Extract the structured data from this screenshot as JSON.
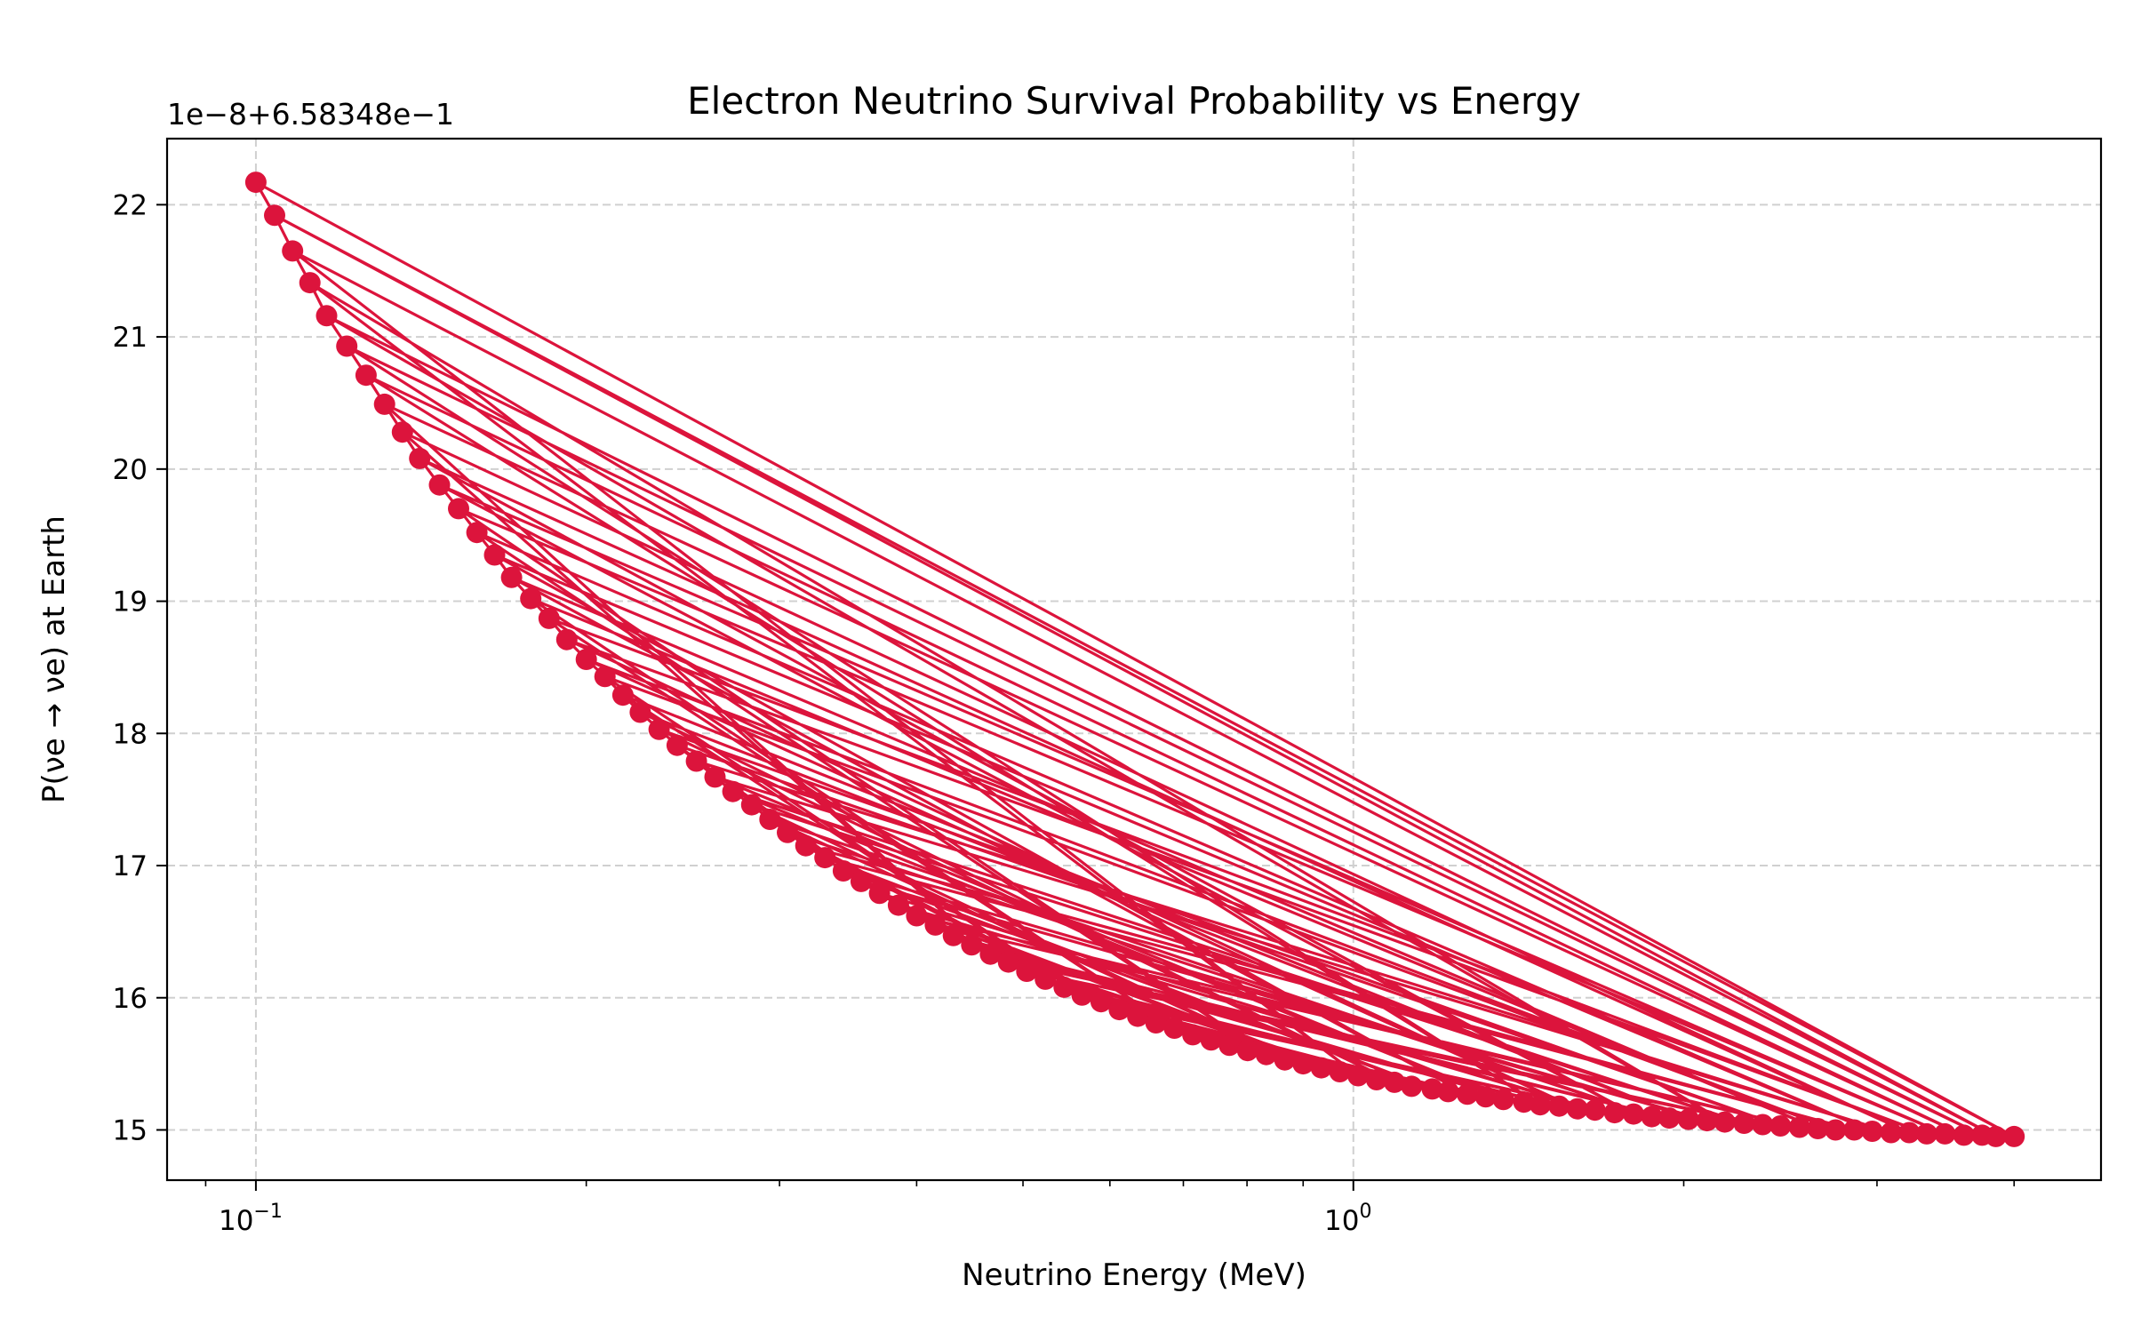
{
  "chart_data": {
    "type": "line",
    "title": "Electron Neutrino Survival Probability vs Energy",
    "xlabel": "Neutrino Energy (MeV)",
    "ylabel": "P(νe → νe) at Earth",
    "offset_text": "1e−8+6.58348e−1",
    "x_scale": "log",
    "xlim": [
      0.083,
      4.8
    ],
    "ylim": [
      14.62,
      22.5
    ],
    "x_major_ticks": [
      {
        "value": 0.1,
        "base": "10",
        "exp": "−1"
      },
      {
        "value": 1.0,
        "base": "10",
        "exp": "0"
      }
    ],
    "x_minor_ticks": [
      0.09,
      0.2,
      0.3,
      0.4,
      0.5,
      0.6,
      0.7,
      0.8,
      0.9,
      2,
      3,
      4
    ],
    "y_ticks": [
      15,
      16,
      17,
      18,
      19,
      20,
      21,
      22
    ],
    "grid": true,
    "grid_style": "dashed",
    "marker": "circle",
    "color": "#dc143c",
    "curve": {
      "description": "P = 6.58348e-1 + 1e-8 * y",
      "y_min_value": 14.95,
      "y_at_0_1": 22.17,
      "y_at_4_0": 14.95,
      "x_min": 0.1,
      "x_max": 4.0,
      "points_sorted_x": [
        0.1,
        0.104,
        0.108,
        0.112,
        0.116,
        0.121,
        0.126,
        0.131,
        0.136,
        0.141,
        0.147,
        0.153,
        0.159,
        0.165,
        0.171,
        0.178,
        0.185,
        0.192,
        0.2,
        0.208,
        0.216,
        0.224,
        0.233,
        0.242,
        0.252,
        0.262,
        0.272,
        0.283,
        0.294,
        0.305,
        0.317,
        0.33,
        0.343,
        0.356,
        0.37,
        0.385,
        0.4,
        0.416,
        0.432,
        0.449,
        0.467,
        0.485,
        0.504,
        0.524,
        0.545,
        0.566,
        0.589,
        0.612,
        0.636,
        0.661,
        0.687,
        0.714,
        0.742,
        0.771,
        0.801,
        0.833,
        0.866,
        0.9,
        0.935,
        0.972,
        1.01,
        1.05,
        1.09,
        1.13,
        1.18,
        1.22,
        1.27,
        1.32,
        1.37,
        1.43,
        1.48,
        1.54,
        1.6,
        1.66,
        1.73,
        1.8,
        1.87,
        1.94,
        2.02,
        2.1,
        2.18,
        2.27,
        2.36,
        2.45,
        2.55,
        2.65,
        2.75,
        2.86,
        2.97,
        3.09,
        3.21,
        3.33,
        3.46,
        3.6,
        3.74,
        3.85,
        4.0
      ],
      "points_sorted_y": [
        22.17,
        21.92,
        21.65,
        21.41,
        21.16,
        20.93,
        20.71,
        20.49,
        20.28,
        20.08,
        19.88,
        19.7,
        19.52,
        19.35,
        19.18,
        19.02,
        18.87,
        18.71,
        18.56,
        18.43,
        18.29,
        18.16,
        18.03,
        17.91,
        17.79,
        17.67,
        17.56,
        17.46,
        17.35,
        17.25,
        17.15,
        17.06,
        16.96,
        16.88,
        16.79,
        16.7,
        16.62,
        16.55,
        16.47,
        16.4,
        16.33,
        16.27,
        16.2,
        16.14,
        16.08,
        16.02,
        15.97,
        15.91,
        15.86,
        15.81,
        15.77,
        15.72,
        15.68,
        15.64,
        15.6,
        15.57,
        15.53,
        15.5,
        15.47,
        15.44,
        15.41,
        15.38,
        15.36,
        15.33,
        15.31,
        15.29,
        15.27,
        15.25,
        15.23,
        15.21,
        15.19,
        15.18,
        15.16,
        15.15,
        15.13,
        15.12,
        15.1,
        15.09,
        15.08,
        15.07,
        15.06,
        15.05,
        15.04,
        15.03,
        15.02,
        15.01,
        15.0,
        15.0,
        14.99,
        14.98,
        14.98,
        14.97,
        14.97,
        14.96,
        14.96,
        14.95,
        14.95
      ],
      "plot_order": [
        0,
        96,
        1,
        95,
        2,
        60,
        3,
        80,
        4,
        94,
        5,
        70,
        6,
        93,
        7,
        40,
        8,
        90,
        9,
        75,
        10,
        92,
        11,
        55,
        12,
        88,
        13,
        66,
        14,
        85,
        15,
        50,
        16,
        91,
        17,
        72,
        18,
        86,
        19,
        45,
        20,
        78,
        21,
        62,
        22,
        83,
        23,
        35,
        24,
        89,
        25,
        68,
        26,
        81,
        27,
        57,
        28,
        76,
        29,
        48,
        30,
        87,
        31,
        64,
        32,
        79,
        33,
        42,
        34,
        73,
        35,
        59,
        36,
        84,
        37,
        52,
        38,
        69,
        39,
        77,
        40,
        61,
        41,
        82,
        42,
        47,
        43,
        71,
        44,
        58,
        45,
        74,
        46,
        65,
        47,
        54,
        48,
        67,
        49,
        63,
        50,
        56,
        51,
        53,
        52,
        97
      ]
    }
  }
}
